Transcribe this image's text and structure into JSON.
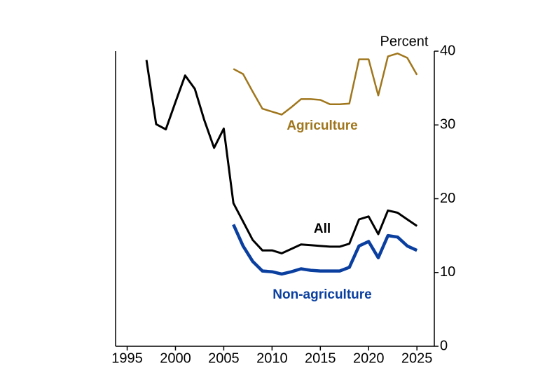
{
  "chart_data": {
    "type": "line",
    "y_axis_label": "Percent",
    "x": [
      1997,
      1998,
      1999,
      2000,
      2001,
      2002,
      2003,
      2004,
      2005,
      2006,
      2007,
      2008,
      2009,
      2010,
      2011,
      2012,
      2013,
      2014,
      2015,
      2016,
      2017,
      2018,
      2019,
      2020,
      2021,
      2022,
      2023,
      2024,
      2025
    ],
    "series": [
      {
        "name": "Agriculture",
        "color": "#a0761c",
        "values": [
          null,
          null,
          null,
          null,
          null,
          null,
          null,
          null,
          null,
          37.6,
          36.9,
          34.5,
          32.2,
          31.8,
          31.4,
          32.4,
          33.5,
          33.5,
          33.4,
          32.8,
          32.8,
          32.9,
          38.9,
          38.9,
          34.0,
          39.3,
          39.7,
          39.1,
          36.8
        ]
      },
      {
        "name": "All",
        "color": "#000000",
        "values": [
          38.8,
          30.1,
          29.4,
          33.1,
          36.7,
          34.9,
          30.6,
          26.9,
          29.5,
          19.4,
          16.9,
          14.4,
          13.0,
          13.0,
          12.6,
          13.2,
          13.8,
          13.7,
          13.6,
          13.5,
          13.5,
          13.9,
          17.2,
          17.6,
          15.2,
          18.4,
          18.1,
          17.2,
          16.3
        ]
      },
      {
        "name": "Non-agriculture",
        "color": "#0a3fa0",
        "values": [
          null,
          null,
          null,
          null,
          null,
          null,
          null,
          null,
          null,
          16.5,
          13.6,
          11.5,
          10.2,
          10.1,
          9.8,
          10.1,
          10.5,
          10.3,
          10.2,
          10.2,
          10.2,
          10.7,
          13.6,
          14.2,
          12.0,
          15.0,
          14.8,
          13.6,
          13.0
        ]
      }
    ],
    "xlim": [
      1993.8,
      2026.8
    ],
    "xticks": [
      1995,
      2000,
      2005,
      2010,
      2015,
      2020,
      2025
    ],
    "ylim": [
      0,
      40
    ],
    "yticks": [
      0,
      10,
      20,
      30,
      40
    ]
  }
}
